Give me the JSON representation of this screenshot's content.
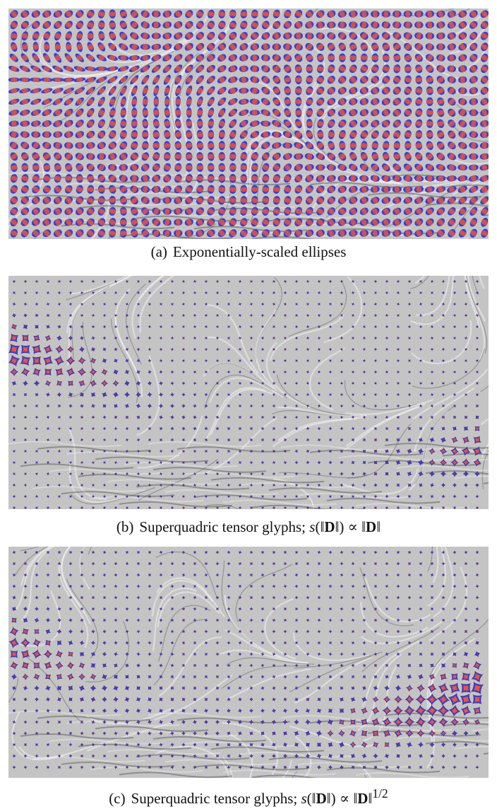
{
  "captions": {
    "a": {
      "label": "(a)",
      "text": "Exponentially-scaled ellipses"
    },
    "b": {
      "label": "(b)",
      "text": "Superquadric tensor glyphs;",
      "math_s": "s",
      "math_D": "D",
      "exponent": ""
    },
    "c": {
      "label": "(c)",
      "text": "Superquadric tensor glyphs;",
      "math_s": "s",
      "math_D": "D",
      "exponent": "1/2"
    }
  },
  "colors": {
    "background_flow": "#c4c4c4",
    "glyph_red": "#e8553f",
    "glyph_blue": "#3a3fd0",
    "glyph_outline": "#5a2a6a",
    "streak_light": "#f2f2f2",
    "streak_dark": "#3c3c3c"
  },
  "panels": [
    {
      "id": "a",
      "glyph": "ellipse"
    },
    {
      "id": "b",
      "glyph": "superquadric"
    },
    {
      "id": "c",
      "glyph": "superquadric"
    }
  ]
}
